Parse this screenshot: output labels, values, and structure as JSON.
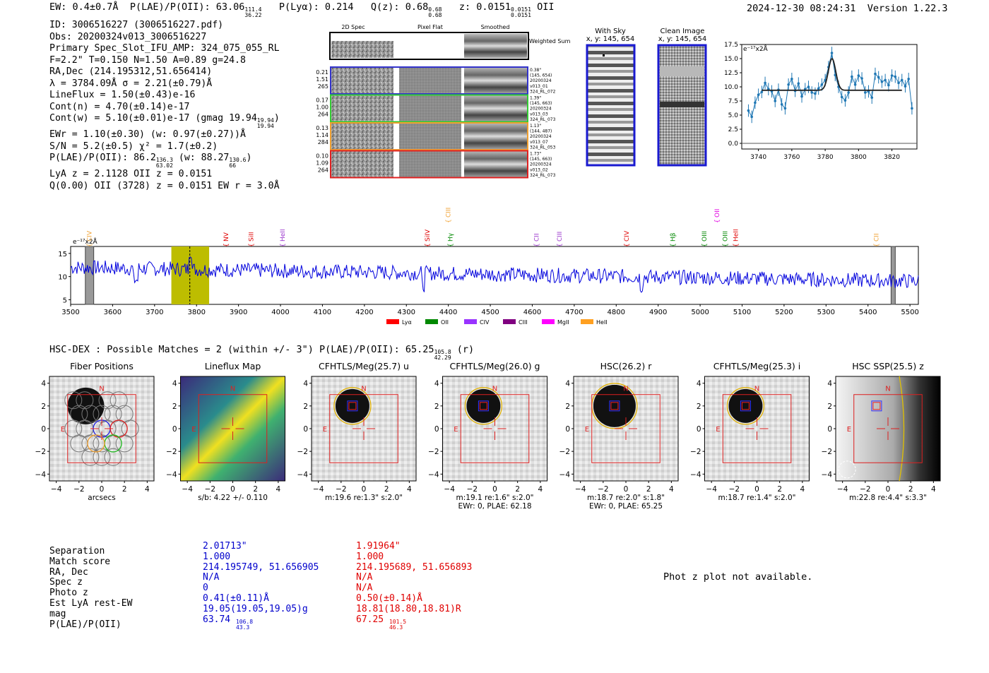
{
  "header": {
    "ew": "EW: 0.4±0.7Å",
    "plae_label": "P(LAE)/P(OII): 63.06",
    "plae_hi": "111.4",
    "plae_lo": "36.22",
    "plya": "P(Lyα): 0.214",
    "qz_label": "Q(z): 0.68",
    "qz_hi": "0.68",
    "qz_lo": "0.68",
    "z_label": "z: 0.0151",
    "z_hi": "0.0151",
    "z_lo": "0.0151",
    "z_line": "OII",
    "date": "2024-12-30 08:24:31",
    "version": "Version 1.22.3"
  },
  "info": {
    "id": "ID: 3006516227 (3006516227.pdf)",
    "obs": "Obs: 20200324v013_3006516227",
    "spec": "Primary Spec_Slot_IFU_AMP: 324_075_055_RL",
    "params": "F=2.2\"  T=0.150  N=1.50  A=0.89  g=24.8",
    "radec": "RA,Dec (214.195312,51.656414)",
    "lambda": "λ = 3784.09Å  σ = 2.21(±0.79)Å",
    "lineflux": "LineFlux = 1.50(±0.43)e-16",
    "contn": "Cont(n) = 4.70(±0.14)e-17",
    "contw": "Cont(w) = 5.10(±0.01)e-17 (gmag 19.94",
    "contw_hi": "19.94",
    "contw_lo": "19.94",
    "ewr": "EWr = 1.10(±0.30) (w: 0.97(±0.27))Å",
    "sn": "S/N = 5.2(±0.5)  χ² = 1.7(±0.2)",
    "plae": "P(LAE)/P(OII): 86.2",
    "plae_hi": "136.3",
    "plae_lo": "63.02",
    "plae_w": "(w: 88.27",
    "plae_w_hi": "130.6",
    "plae_w_lo": "66",
    "lya": "LyA z = 2.1128  OII z = 0.0151",
    "q": "Q(0.00) OII (3728) z = 0.0151  EW r = 3.0Å"
  },
  "cutouts": {
    "col_labels": [
      "2D Spec",
      "Pixel Flat",
      "Smoothed"
    ],
    "weighted_label": "Weighted Sum",
    "rows": [
      {
        "left": [
          "0.21",
          "1.51",
          "265"
        ],
        "right": [
          "0.38\"",
          "(145, 654)",
          "20200324",
          "v013_01",
          "324_RL_072"
        ],
        "color": "#3333cc"
      },
      {
        "left": [
          "0.17",
          "1.00",
          "264"
        ],
        "right": [
          "1.39\"",
          "(145, 663)",
          "20200324",
          "v013_03",
          "324_RL_073"
        ],
        "color": "#33cc33"
      },
      {
        "left": [
          "0.13",
          "1.14",
          "284"
        ],
        "right": [
          "1.13\"",
          "(144, 487)",
          "20200324",
          "v013_07",
          "324_RL_053"
        ],
        "color": "#f0a030"
      },
      {
        "left": [
          "0.10",
          "1.09",
          "264"
        ],
        "right": [
          "1.73\"",
          "(145, 663)",
          "20200324",
          "v013_02",
          "324_RL_073"
        ],
        "color": "#e02020"
      }
    ],
    "with_sky_title": "With Sky",
    "with_sky_sub": "x, y: 145, 654",
    "clean_title": "Clean Image",
    "clean_sub": "x, y: 145, 654"
  },
  "chart_data": [
    {
      "type": "line",
      "title": "",
      "ylabel": "e⁻¹⁷x2Å",
      "xlim": [
        3730,
        3835
      ],
      "ylim": [
        -1,
        17.5
      ],
      "xticks": [
        3740,
        3760,
        3780,
        3800,
        3820
      ],
      "yticks": [
        0.0,
        2.5,
        5.0,
        7.5,
        10.0,
        12.5,
        15.0,
        17.5
      ],
      "x": [
        3734,
        3736,
        3738,
        3740,
        3742,
        3744,
        3746,
        3748,
        3750,
        3752,
        3754,
        3756,
        3758,
        3760,
        3762,
        3764,
        3766,
        3768,
        3770,
        3772,
        3774,
        3776,
        3778,
        3780,
        3782,
        3784,
        3786,
        3788,
        3790,
        3792,
        3794,
        3796,
        3798,
        3800,
        3802,
        3804,
        3806,
        3808,
        3810,
        3812,
        3814,
        3816,
        3818,
        3820,
        3822,
        3824,
        3826,
        3828,
        3830,
        3832
      ],
      "y": [
        5.8,
        4.7,
        7.2,
        8.6,
        9.1,
        10.7,
        9.6,
        9.2,
        7.5,
        9.5,
        6.9,
        6.2,
        10.4,
        11.4,
        9.3,
        10.6,
        8.3,
        9.6,
        10.0,
        9.0,
        8.8,
        9.7,
        10.4,
        11.2,
        13.5,
        16.0,
        12.1,
        10.0,
        8.2,
        7.6,
        9.0,
        11.8,
        10.4,
        12.0,
        11.5,
        9.0,
        9.2,
        8.1,
        12.3,
        11.7,
        10.9,
        11.2,
        10.3,
        12.0,
        11.8,
        10.7,
        11.2,
        10.1,
        11.4,
        6.2
      ],
      "fit": {
        "continuum": 9.4,
        "center": 3784.1,
        "sigma": 2.21,
        "amplitude": 5.6
      }
    },
    {
      "type": "line",
      "ylabel": "e⁻¹⁷x2Å",
      "xlim": [
        3500,
        5520
      ],
      "ylim": [
        4,
        16.5
      ],
      "xticks": [
        3500,
        3600,
        3700,
        3800,
        3900,
        4000,
        4100,
        4200,
        4300,
        4400,
        4500,
        4600,
        4700,
        4800,
        4900,
        5000,
        5100,
        5200,
        5300,
        5400,
        5500
      ],
      "yticks": [
        5,
        10,
        15
      ],
      "highlight": [
        3740,
        3830
      ],
      "emission_line": 3784,
      "masked": [
        [
          3535,
          3555
        ],
        [
          5455,
          5465
        ]
      ],
      "lines": [
        {
          "label": "CIV",
          "x": 3545,
          "color": "#f0a030",
          "level": "low"
        },
        {
          "label": "NV",
          "x": 3870,
          "color": "#e00000",
          "level": "low"
        },
        {
          "label": "SiII",
          "x": 3930,
          "color": "#e00000",
          "level": "low"
        },
        {
          "label": "HeII",
          "x": 4005,
          "color": "#9933cc",
          "level": "low"
        },
        {
          "label": "SiIV",
          "x": 4350,
          "color": "#e00000",
          "level": "low"
        },
        {
          "label": "CIII",
          "x": 4400,
          "color": "#f0a030",
          "level": "high"
        },
        {
          "label": "Hγ",
          "x": 4405,
          "color": "#008800",
          "level": "low"
        },
        {
          "label": "CII",
          "x": 4610,
          "color": "#9933cc",
          "level": "low"
        },
        {
          "label": "CIII",
          "x": 4665,
          "color": "#9933cc",
          "level": "low"
        },
        {
          "label": "CIV",
          "x": 4825,
          "color": "#e00000",
          "level": "low"
        },
        {
          "label": "Hβ",
          "x": 4935,
          "color": "#008800",
          "level": "low"
        },
        {
          "label": "OII",
          "x": 5040,
          "color": "#e000e0",
          "level": "high"
        },
        {
          "label": "OIII",
          "x": 5010,
          "color": "#008800",
          "level": "low"
        },
        {
          "label": "OIII",
          "x": 5060,
          "color": "#008800",
          "level": "low"
        },
        {
          "label": "HeII",
          "x": 5085,
          "color": "#e00000",
          "level": "low"
        },
        {
          "label": "CII",
          "x": 5420,
          "color": "#f0a030",
          "level": "low"
        }
      ],
      "legend": [
        {
          "name": "Lyα",
          "color": "#ff0000"
        },
        {
          "name": "OII",
          "color": "#008800"
        },
        {
          "name": "CIV",
          "color": "#9933ff"
        },
        {
          "name": "CIII",
          "color": "#800080"
        },
        {
          "name": "MgII",
          "color": "#ff00ff"
        },
        {
          "name": "HeII",
          "color": "#ffa020"
        }
      ]
    }
  ],
  "hsc": {
    "title": "HSC-DEX : Possible Matches = 2 (within +/- 3\")  P(LAE)/P(OII): 65.25",
    "title_hi": "105.8",
    "title_lo": "42.29",
    "title_suffix": "(r)",
    "ticks": [
      "4",
      "2",
      "0",
      "−2",
      "−4"
    ],
    "xticks": [
      "−4",
      "−2",
      "0",
      "2",
      "4"
    ],
    "panels": [
      {
        "title": "Fiber Positions",
        "xlabel": "arcsecs",
        "xlabel2": ""
      },
      {
        "title": "Lineflux Map",
        "xlabel": "s/b: 4.22 +/- 0.110",
        "xlabel2": ""
      },
      {
        "title": "CFHTLS/Meg(25.7) u",
        "xlabel": "m:19.6  re:1.3\"  s:2.0\"",
        "xlabel2": ""
      },
      {
        "title": "CFHTLS/Meg(26.0) g",
        "xlabel": "m:19.1  re:1.6\"  s:2.0\"",
        "xlabel2": "EWr: 0, PLAE: 62.18"
      },
      {
        "title": "HSC(26.2) r",
        "xlabel": "m:18.7  re:2.0\"  s:1.8\"",
        "xlabel2": "EWr: 0, PLAE: 65.25"
      },
      {
        "title": "CFHTLS/Meg(25.3) i",
        "xlabel": "m:18.7  re:1.4\"  s:2.0\"",
        "xlabel2": ""
      },
      {
        "title": "HSC SSP(25.5) z",
        "xlabel": "m:22.8  re:4.4\"  s:3.3\"",
        "xlabel2": ""
      }
    ],
    "n_label": "N",
    "e_label": "E"
  },
  "matches": {
    "labels": [
      "Separation",
      "Match score",
      "RA, Dec",
      "Spec z",
      "Photo z",
      "Est LyA rest-EW",
      "mag",
      "P(LAE)/P(OII)"
    ],
    "blue": [
      "2.01713\"",
      "1.000",
      "214.195749, 51.656905",
      "N/A",
      "0",
      "0.41(±0.11)Å",
      "19.05(19.05,19.05)g",
      "63.74"
    ],
    "blue_plae_hi": "106.8",
    "blue_plae_lo": "43.3",
    "red": [
      "1.91964\"",
      "1.000",
      "214.195689, 51.656893",
      "N/A",
      "N/A",
      "0.50(±0.14)Å",
      "18.81(18.80,18.81)R",
      "67.25"
    ],
    "red_plae_hi": "101.5",
    "red_plae_lo": "46.3"
  },
  "photz": "Phot z plot not available."
}
